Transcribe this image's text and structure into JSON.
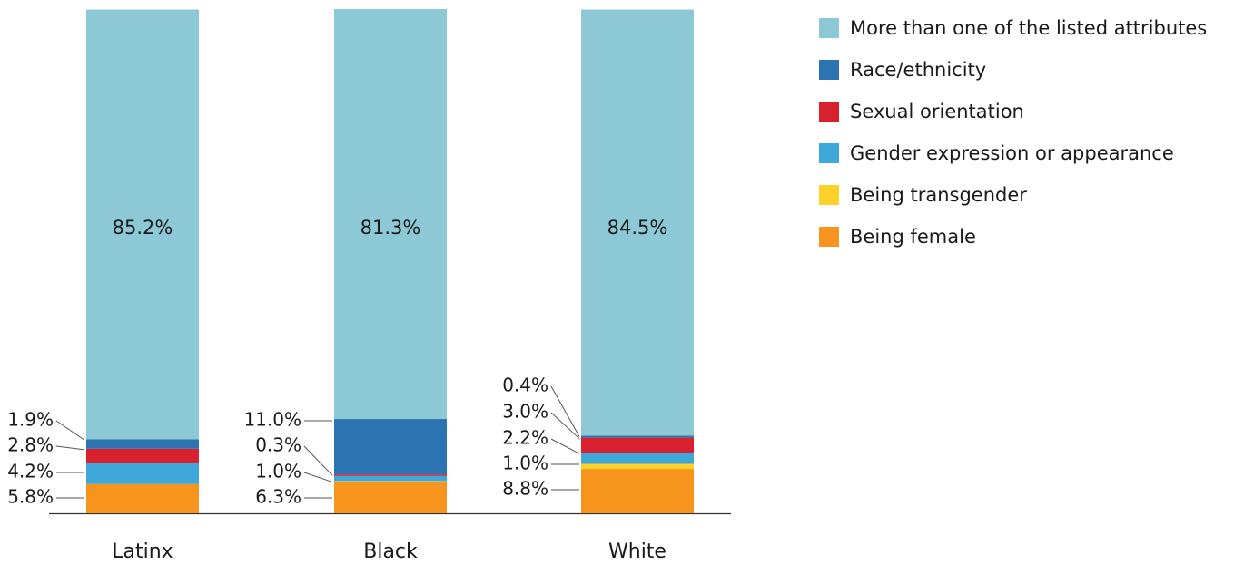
{
  "chart_data": {
    "type": "bar",
    "stacked": true,
    "categories": [
      "Latinx",
      "Black",
      "White"
    ],
    "series": [
      {
        "name": "Being female",
        "color": "#f7941d",
        "values": [
          5.8,
          6.3,
          8.8
        ]
      },
      {
        "name": "Being transgender",
        "color": "#fdd128",
        "values": [
          0.0,
          0.1,
          1.0
        ]
      },
      {
        "name": "Gender expression or appearance",
        "color": "#3ea8da",
        "values": [
          4.2,
          1.0,
          2.2
        ]
      },
      {
        "name": "Sexual orientation",
        "color": "#d9202f",
        "values": [
          2.8,
          0.3,
          3.0
        ]
      },
      {
        "name": "Race/ethnicity",
        "color": "#2b74b1",
        "values": [
          1.9,
          11.0,
          0.4
        ]
      },
      {
        "name": "More than one of the listed attributes",
        "color": "#8cc8d6",
        "values": [
          85.2,
          81.3,
          84.5
        ]
      }
    ],
    "data_labels": {
      "Latinx": {
        "top": "85.2%",
        "side": [
          "1.9%",
          "2.8%",
          "4.2%",
          "5.8%"
        ]
      },
      "Black": {
        "top": "81.3%",
        "side": [
          "11.0%",
          "0.3%",
          "1.0%",
          "6.3%"
        ]
      },
      "White": {
        "top": "84.5%",
        "side": [
          "0.4%",
          "3.0%",
          "2.2%",
          "1.0%",
          "8.8%"
        ]
      }
    },
    "legend": {
      "placement": "top-right",
      "entries": [
        {
          "name": "More than one of the listed attributes",
          "color": "#8cc8d6"
        },
        {
          "name": "Race/ethnicity",
          "color": "#2b74b1"
        },
        {
          "name": "Sexual orientation",
          "color": "#d9202f"
        },
        {
          "name": "Gender expression or appearance",
          "color": "#3ea8da"
        },
        {
          "name": "Being transgender",
          "color": "#fdd128"
        },
        {
          "name": "Being female",
          "color": "#f7941d"
        }
      ]
    },
    "ylim": [
      0,
      100
    ],
    "grid": false
  }
}
